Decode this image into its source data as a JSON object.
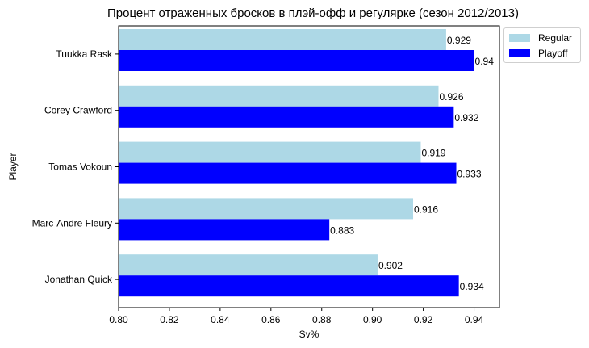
{
  "chart_data": {
    "type": "bar",
    "orientation": "horizontal",
    "title": "Процент отраженных бросков в плэй-офф и регулярке (сезон 2012/2013)",
    "xlabel": "Sv%",
    "ylabel": "Player",
    "xlim": [
      0.8,
      0.95
    ],
    "x_ticks": [
      "0.80",
      "0.82",
      "0.84",
      "0.86",
      "0.88",
      "0.90",
      "0.92",
      "0.94"
    ],
    "grid": false,
    "legend_position": "outside-top-right",
    "categories": [
      "Tuukka Rask",
      "Corey Crawford",
      "Tomas Vokoun",
      "Marc-Andre Fleury",
      "Jonathan Quick"
    ],
    "series": [
      {
        "name": "Regular",
        "color": "#add8e6",
        "values": [
          0.929,
          0.926,
          0.919,
          0.916,
          0.902
        ],
        "labels": [
          "0.929",
          "0.926",
          "0.919",
          "0.916",
          "0.902"
        ]
      },
      {
        "name": "Playoff",
        "color": "#0000ff",
        "values": [
          0.94,
          0.932,
          0.933,
          0.883,
          0.934
        ],
        "labels": [
          "0.94",
          "0.932",
          "0.933",
          "0.883",
          "0.934"
        ]
      }
    ]
  }
}
